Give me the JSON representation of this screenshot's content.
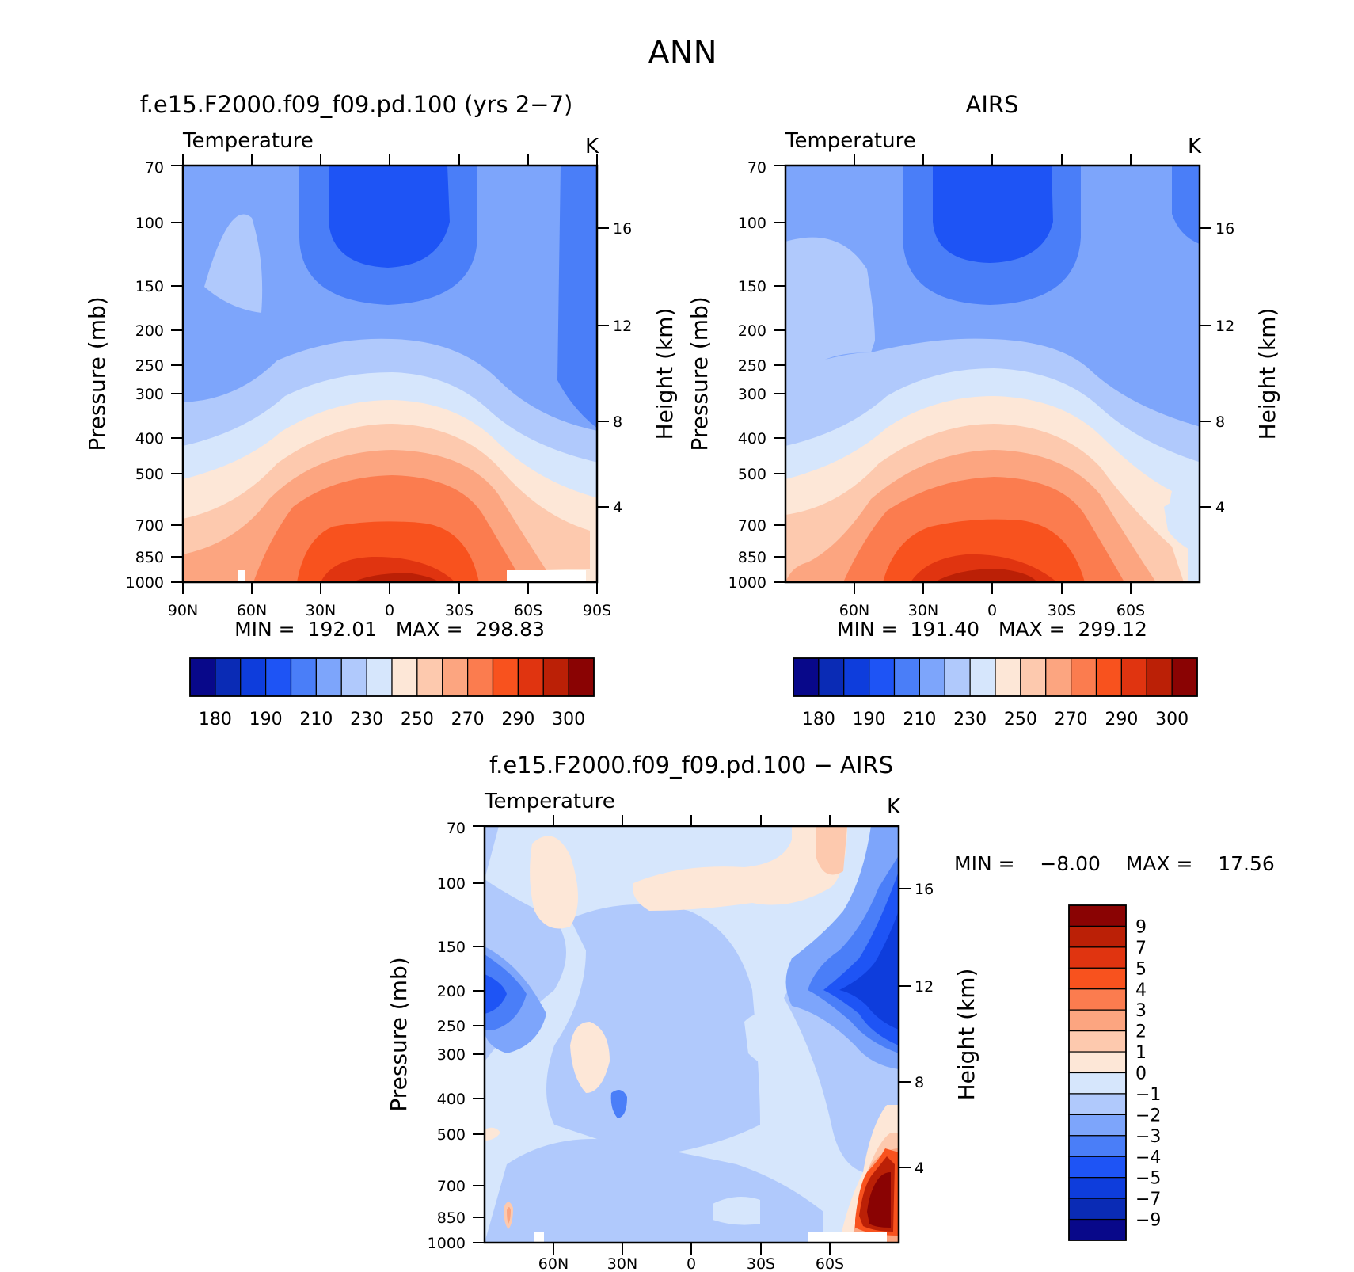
{
  "figure_title": "ANN",
  "panels": [
    {
      "title": "f.e15.F2000.f09_f09.pd.100 (yrs 2−7)",
      "variable": "Temperature",
      "units": "K",
      "ylabel": "Pressure (mb)",
      "right_ylabel": "Height (km)",
      "min_max_text": "MIN =  192.01   MAX =  298.83",
      "x_ticks": [
        "90N",
        "60N",
        "30N",
        "0",
        "30S",
        "60S",
        "90S"
      ]
    },
    {
      "title": "AIRS",
      "variable": "Temperature",
      "units": "K",
      "ylabel": "Pressure (mb)",
      "right_ylabel": "Height (km)",
      "min_max_text": "MIN =  191.40   MAX =  299.12",
      "x_ticks": [
        "",
        "60N",
        "30N",
        "0",
        "30S",
        "60S",
        ""
      ]
    },
    {
      "title": "f.e15.F2000.f09_f09.pd.100 − AIRS",
      "variable": "Temperature",
      "units": "K",
      "ylabel": "Pressure (mb)",
      "right_ylabel": "Height (km)",
      "min_max_text": "MIN =    −8.00    MAX =    17.56",
      "x_ticks": [
        "",
        "60N",
        "30N",
        "0",
        "30S",
        "60S",
        ""
      ]
    }
  ],
  "chart_data": [
    {
      "type": "heatmap",
      "title": "f.e15.F2000.f09_f09.pd.100 (yrs 2−7)",
      "xlabel": "",
      "ylabel": "Pressure (mb)",
      "y_ticks": [
        "70",
        "100",
        "150",
        "200",
        "250",
        "300",
        "400",
        "500",
        "700",
        "850",
        "1000"
      ],
      "y_right_ticks": [
        "16",
        "12",
        "8",
        "4"
      ],
      "x_ticks": [
        "90N",
        "60N",
        "30N",
        "0",
        "30S",
        "60S",
        "90S"
      ],
      "colorbar_levels": [
        175,
        180,
        185,
        190,
        200,
        210,
        220,
        230,
        240,
        250,
        260,
        270,
        280,
        290,
        295,
        300
      ],
      "colorbar_labels": [
        "180",
        "190",
        "210",
        "230",
        "250",
        "270",
        "290",
        "300"
      ],
      "min": 192.01,
      "max": 298.83
    },
    {
      "type": "heatmap",
      "title": "AIRS",
      "xlabel": "",
      "ylabel": "Pressure (mb)",
      "y_ticks": [
        "70",
        "100",
        "150",
        "200",
        "250",
        "300",
        "400",
        "500",
        "700",
        "850",
        "1000"
      ],
      "y_right_ticks": [
        "16",
        "12",
        "8",
        "4"
      ],
      "x_ticks": [
        "60N",
        "30N",
        "0",
        "30S",
        "60S"
      ],
      "colorbar_levels": [
        175,
        180,
        185,
        190,
        200,
        210,
        220,
        230,
        240,
        250,
        260,
        270,
        280,
        290,
        295,
        300
      ],
      "colorbar_labels": [
        "180",
        "190",
        "210",
        "230",
        "250",
        "270",
        "290",
        "300"
      ],
      "min": 191.4,
      "max": 299.12
    },
    {
      "type": "heatmap",
      "title": "f.e15.F2000.f09_f09.pd.100 − AIRS",
      "xlabel": "",
      "ylabel": "Pressure (mb)",
      "y_ticks": [
        "70",
        "100",
        "150",
        "200",
        "250",
        "300",
        "400",
        "500",
        "700",
        "850",
        "1000"
      ],
      "y_right_ticks": [
        "16",
        "12",
        "8",
        "4"
      ],
      "x_ticks": [
        "60N",
        "30N",
        "0",
        "30S",
        "60S"
      ],
      "colorbar_levels": [
        9,
        7,
        5,
        4,
        3,
        2,
        1,
        0,
        -1,
        -2,
        -3,
        -4,
        -5,
        -7,
        -9
      ],
      "colorbar_labels": [
        "9",
        "7",
        "5",
        "4",
        "3",
        "2",
        "1",
        "0",
        "−1",
        "−2",
        "−3",
        "−4",
        "−5",
        "−7",
        "−9"
      ],
      "min": -8.0,
      "max": 17.56
    }
  ],
  "colors": {
    "abs_scale": [
      "#08088a",
      "#0a2bb5",
      "#0e3ddc",
      "#1e54f5",
      "#4a7ef8",
      "#7da5fb",
      "#b0c9fc",
      "#d6e6fc",
      "#fde7d7",
      "#fdc9ae",
      "#fca580",
      "#fb7c4f",
      "#f8521e",
      "#e03410",
      "#bb2006",
      "#8a0303"
    ],
    "diff_scale": [
      "#8a0303",
      "#bb2006",
      "#e03410",
      "#f8521e",
      "#fb7c4f",
      "#fca580",
      "#fdc9ae",
      "#fde7d7",
      "#d6e6fc",
      "#b0c9fc",
      "#7da5fb",
      "#4a7ef8",
      "#1e54f5",
      "#0e3ddc",
      "#0a2bb5",
      "#08088a"
    ]
  }
}
